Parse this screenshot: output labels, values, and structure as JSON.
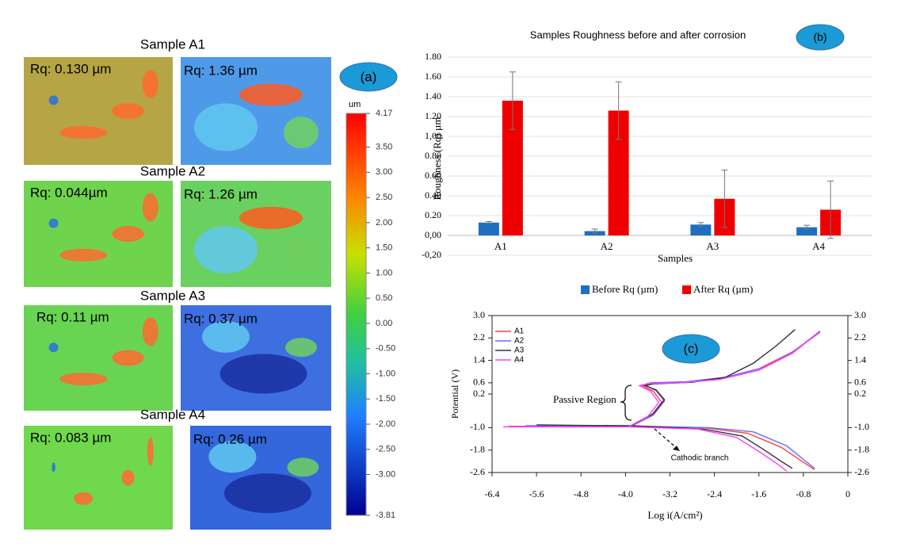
{
  "panel_a": {
    "label": "(a)",
    "unit": "um",
    "samples": [
      {
        "title": "Sample A1",
        "before": "Rq: 0.130 µm",
        "after": "Rq: 1.36 µm"
      },
      {
        "title": "Sample A2",
        "before": "Rq: 0.044µm",
        "after": "Rq: 1.26 µm"
      },
      {
        "title": "Sample A3",
        "before": "Rq: 0.11 µm",
        "after": "Rq: 0.37 µm"
      },
      {
        "title": "Sample A4",
        "before": "Rq: 0.083 µm",
        "after": "Rq: 0.26 µm"
      }
    ],
    "colorbar_lim": [
      -3.81,
      4.17
    ],
    "colorbar_ticks": [
      4.17,
      {
        "value": 3.5,
        "label": "3.50"
      },
      {
        "value": 3,
        "label": "3.00"
      },
      {
        "value": 2.5,
        "label": "2.50"
      },
      {
        "value": 2,
        "label": "2.00"
      },
      {
        "value": 1.5,
        "label": "1.50"
      },
      {
        "value": 1,
        "label": "1.00"
      },
      {
        "value": 0.5,
        "label": "0.50"
      },
      {
        "value": 0,
        "label": "0.00"
      },
      {
        "value": -0.5,
        "label": "-0.50"
      },
      {
        "value": -1,
        "label": "-1.00"
      },
      {
        "value": -1.5,
        "label": "-1.50"
      },
      {
        "value": -2,
        "label": "-2.00"
      },
      {
        "value": -2.5,
        "label": "-2.50"
      },
      {
        "value": -3,
        "label": "-3.00"
      },
      -3.81
    ]
  },
  "chart_data": [
    {
      "type": "bar",
      "panel_label": "(b)",
      "title": "Samples Roughness before and after corrosion",
      "y_label": "Roughness (Rq) µm",
      "x_label": "Samples",
      "categories": [
        "A1",
        "A2",
        "A3",
        "A4"
      ],
      "series": [
        {
          "name": "Before Rq  (µm)",
          "color": "#1f6fc0",
          "values": [
            0.13,
            0.044,
            0.11,
            0.083
          ],
          "errors": [
            0.01,
            0.02,
            0.02,
            0.02
          ]
        },
        {
          "name": "After Rq  (µm)",
          "color": "#ee0000",
          "values": [
            1.36,
            1.26,
            0.37,
            0.26
          ],
          "errors": [
            0.29,
            0.29,
            0.29,
            0.29
          ]
        }
      ],
      "ylim": [
        -0.2,
        1.8
      ],
      "yticks": [
        {
          "value": 1.8,
          "label": "1.80"
        },
        {
          "value": 1.6,
          "label": "1.60"
        },
        {
          "value": 1.4,
          "label": "1.40"
        },
        {
          "value": 1.2,
          "label": "1.20"
        },
        {
          "value": 1,
          "label": "1,00"
        },
        {
          "value": 0.8,
          "label": "0.80"
        },
        {
          "value": 0.6,
          "label": "0.60"
        },
        {
          "value": 0.4,
          "label": "0.40"
        },
        {
          "value": 0.2,
          "label": "0.20"
        },
        {
          "value": 0,
          "label": "0,00"
        },
        {
          "value": -0.2,
          "label": "-0,20"
        }
      ],
      "grid": true,
      "legend": "bottom"
    },
    {
      "type": "line",
      "panel_label": "(c)",
      "x_label": "Log i(A/cm²)",
      "y_label": "Potential (V)",
      "annotations": [
        "Passive Region",
        "Cathodic branch"
      ],
      "series": [
        {
          "name": "A1",
          "color": "#ff4040",
          "x": [
            -6.1,
            -5.0,
            -3.9,
            -3.55,
            -3.35,
            -3.5,
            -3.7,
            -3.6,
            -3.0,
            -2.3,
            -1.6,
            -1.0,
            -0.5,
            null,
            -3.9,
            -2.6,
            -1.8,
            -1.2,
            -0.9,
            -0.6
          ],
          "values": [
            -0.95,
            -0.95,
            -0.95,
            -0.6,
            -0.1,
            0.3,
            0.5,
            0.58,
            0.62,
            0.75,
            1.1,
            1.7,
            2.4,
            null,
            -0.95,
            -1.0,
            -1.2,
            -1.7,
            -2.1,
            -2.5
          ]
        },
        {
          "name": "A2",
          "color": "#6a6aff",
          "x": [
            -5.8,
            -4.9,
            -3.9,
            -3.5,
            -3.3,
            -3.45,
            -3.65,
            -3.55,
            -2.9,
            -2.2,
            -1.5,
            -0.95,
            -0.5,
            null,
            -3.9,
            -2.5,
            -1.7,
            -1.1,
            -0.85,
            -0.6
          ],
          "values": [
            -0.93,
            -0.94,
            -0.94,
            -0.55,
            -0.05,
            0.32,
            0.52,
            0.6,
            0.64,
            0.8,
            1.15,
            1.75,
            2.45,
            null,
            -0.94,
            -1.0,
            -1.15,
            -1.65,
            -2.05,
            -2.45
          ]
        },
        {
          "name": "A3",
          "color": "#333333",
          "x": [
            -5.6,
            -4.8,
            -3.9,
            -3.5,
            -3.3,
            -3.45,
            -3.65,
            -3.5,
            -2.8,
            -2.2,
            -1.7,
            -1.3,
            -0.95,
            null,
            -3.9,
            -2.6,
            -1.9,
            -1.5,
            -1.2,
            -1.0
          ],
          "values": [
            -0.9,
            -0.92,
            -0.93,
            -0.5,
            0.0,
            0.35,
            0.5,
            0.56,
            0.62,
            0.8,
            1.3,
            1.9,
            2.5,
            null,
            -0.93,
            -1.05,
            -1.3,
            -1.8,
            -2.2,
            -2.45
          ]
        },
        {
          "name": "A4",
          "color": "#ff40ff",
          "x": [
            -6.2,
            -5.2,
            -3.95,
            -3.6,
            -3.4,
            -3.55,
            -3.75,
            -3.6,
            -3.0,
            -2.3,
            -1.6,
            -1.0,
            -0.55,
            null,
            -3.95,
            -2.7,
            -2.0,
            -1.6,
            -1.3,
            -1.1
          ],
          "values": [
            -0.97,
            -0.97,
            -0.97,
            -0.6,
            -0.1,
            0.3,
            0.5,
            0.57,
            0.6,
            0.72,
            1.05,
            1.65,
            2.35,
            null,
            -0.97,
            -1.05,
            -1.35,
            -1.85,
            -2.25,
            -2.55
          ]
        }
      ],
      "xlim": [
        -6.4,
        0
      ],
      "ylim": [
        -2.6,
        3.0
      ],
      "y2lim": [
        -2.6,
        3.0
      ],
      "xticks": [
        -6.4,
        -5.6,
        -4.8,
        {
          "value": -4,
          "label": "-4.0"
        },
        -3.2,
        -2.4,
        -1.6,
        -0.8,
        0
      ],
      "yticks": [
        {
          "value": 3,
          "label": "3.0"
        },
        2.2,
        1.4,
        0.6,
        0.2,
        {
          "value": -1,
          "label": "-1.0"
        },
        -1.8,
        -2.6
      ],
      "y2ticks": [
        {
          "value": 3,
          "label": "3.0"
        },
        2.2,
        1.4,
        0.6,
        0.2,
        {
          "value": -1,
          "label": "-1.0"
        },
        -1.8,
        -2.6
      ],
      "legend": "upper left"
    }
  ]
}
